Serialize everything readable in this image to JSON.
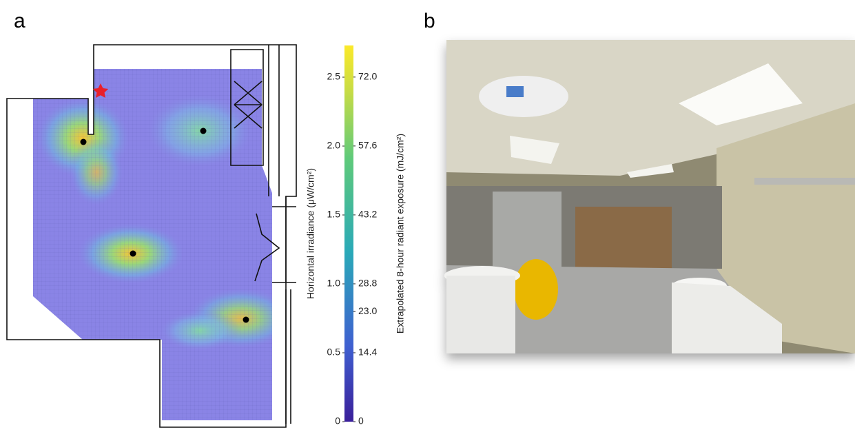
{
  "panels": [
    {
      "label": "a"
    },
    {
      "label": "b"
    }
  ],
  "chart_data": {
    "type": "heatmap",
    "y_label": "Horizontal irradiance (μW/cm²)",
    "y2_label": "Extrapolated 8-hour radiant exposure (mJ/cm²)",
    "ylim": [
      0,
      2.73
    ],
    "yticks": [
      0,
      0.5,
      {
        "value": 1,
        "label": "1.0"
      },
      1.5,
      {
        "value": 2,
        "label": "2.0"
      },
      2.5
    ],
    "y2lim": [
      0,
      78.6
    ],
    "y2ticks": [
      0,
      14.4,
      {
        "value": 23,
        "label": "23.0"
      },
      28.8,
      43.2,
      57.6,
      {
        "value": 72,
        "label": "72.0"
      }
    ]
  }
}
